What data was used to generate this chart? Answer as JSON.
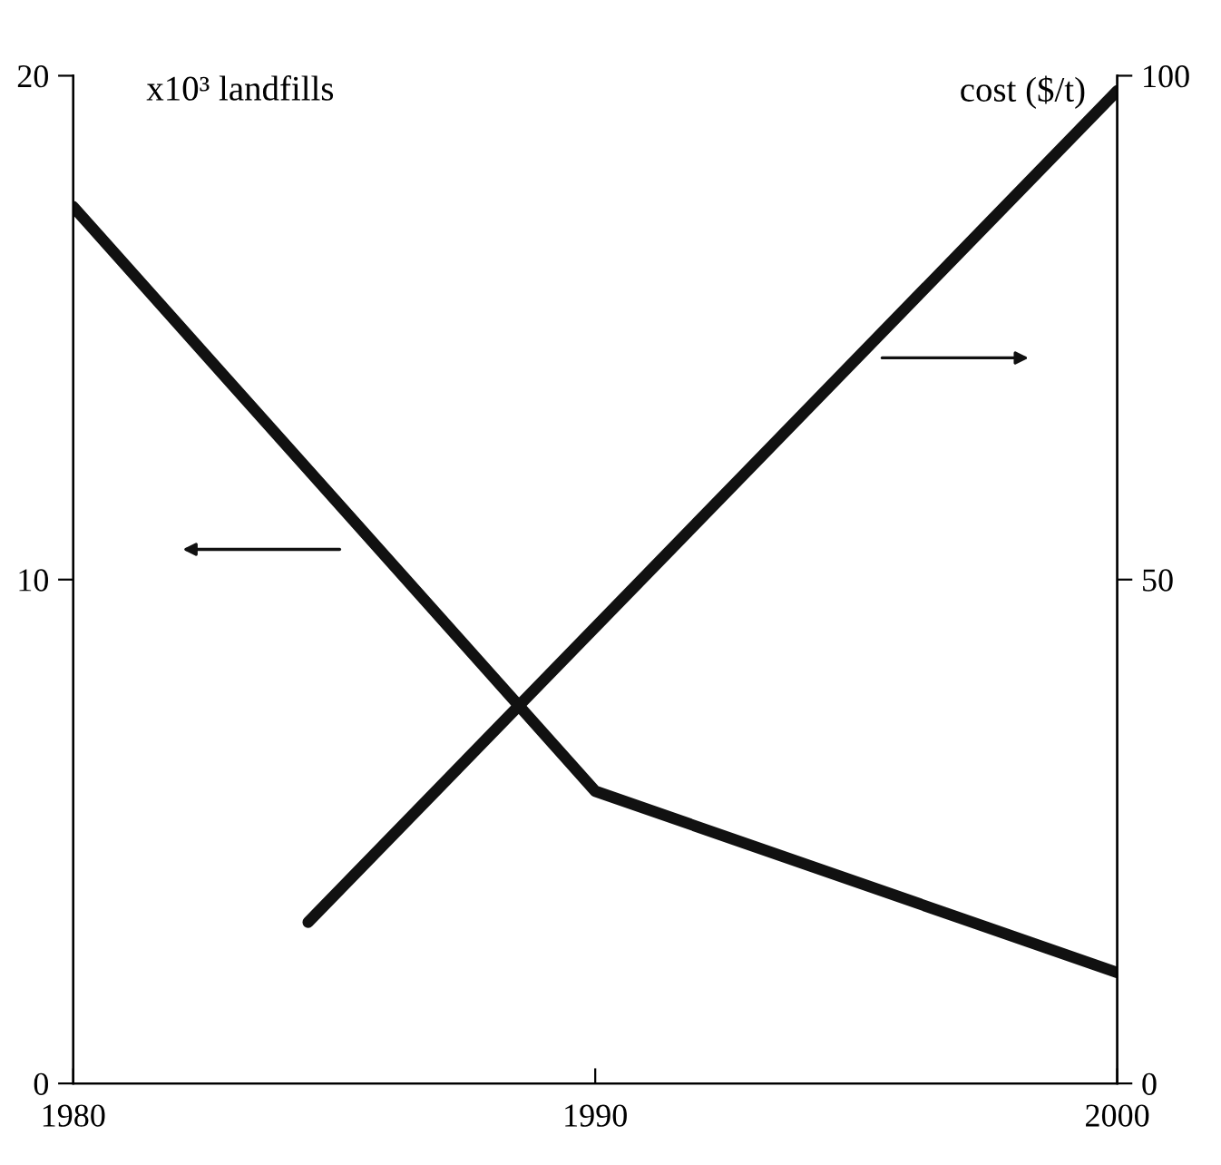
{
  "chart_data": {
    "type": "line",
    "ylabel": "x10³ landfills",
    "y2label": "cost ($/t)",
    "xlim": [
      1980,
      2000
    ],
    "xticks": [
      1980,
      1990,
      2000
    ],
    "ylim": [
      0,
      20
    ],
    "yticks": [
      0,
      10,
      20
    ],
    "y2lim": [
      0,
      100
    ],
    "y2ticks": [
      0,
      50,
      100
    ],
    "grid": false,
    "legend": false,
    "marker": "none",
    "line_style": "solid",
    "series": [
      {
        "color": "#111111",
        "x": [
          1980,
          1990,
          2000
        ],
        "values": [
          17.4,
          5.8,
          2.2
        ]
      },
      {
        "color": "#111111",
        "axis": "y2",
        "x": [
          1984.5,
          2000
        ],
        "values": [
          16,
          98.5
        ]
      }
    ]
  }
}
